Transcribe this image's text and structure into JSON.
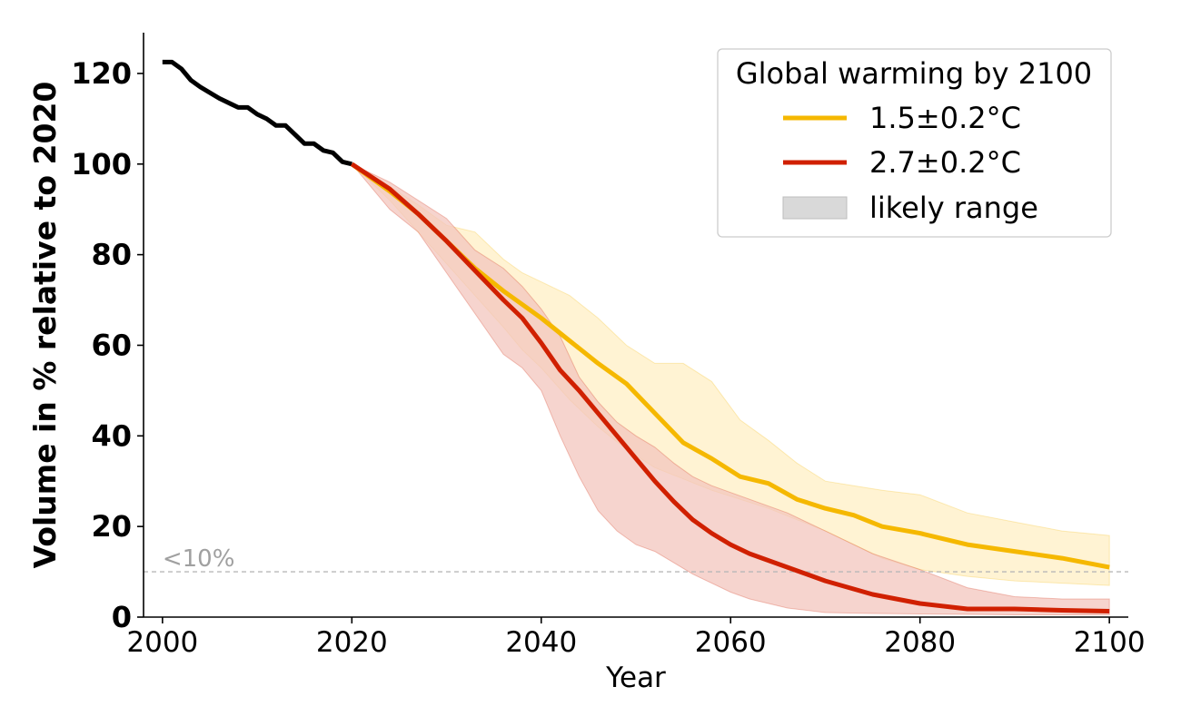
{
  "chart_data": {
    "type": "line",
    "xlabel": "Year",
    "ylabel": "Volume in % relative to 2020",
    "xlim": [
      1998,
      2102
    ],
    "ylim": [
      0,
      129
    ],
    "xticks": [
      2000,
      2020,
      2040,
      2060,
      2080,
      2100
    ],
    "yticks": [
      0,
      20,
      40,
      60,
      80,
      100,
      120
    ],
    "threshold": {
      "value": 10,
      "label": "<10%"
    },
    "legend": {
      "title": "Global warming by 2100",
      "placement": "top-right",
      "entries": [
        {
          "label": "1.5±0.2°C",
          "kind": "line",
          "color": "#F5B800"
        },
        {
          "label": "2.7±0.2°C",
          "kind": "line",
          "color": "#D02000"
        },
        {
          "label": "likely range",
          "kind": "patch",
          "color": "#d9d9d9"
        }
      ]
    },
    "historical": {
      "color": "#000000",
      "x": [
        2000,
        2001,
        2002,
        2003,
        2004,
        2006,
        2008,
        2009,
        2010,
        2011,
        2012,
        2013,
        2014,
        2015,
        2016,
        2017,
        2018,
        2019,
        2020
      ],
      "y": [
        122.5,
        122.5,
        121,
        118.5,
        117,
        114.5,
        112.5,
        112.5,
        111,
        110,
        108.5,
        108.5,
        106.5,
        104.5,
        104.5,
        103,
        102.5,
        100.5,
        100
      ]
    },
    "series": [
      {
        "name": "1.5±0.2°C",
        "color": "#F5B800",
        "band_color": "#FFEFC4",
        "x": [
          2020,
          2024,
          2027,
          2030,
          2033,
          2036,
          2038,
          2040,
          2043,
          2046,
          2049,
          2052,
          2055,
          2058,
          2061,
          2064,
          2067,
          2070,
          2073,
          2076,
          2080,
          2085,
          2090,
          2095,
          2100
        ],
        "y": [
          100,
          94,
          89,
          83,
          77,
          72,
          69,
          66,
          61,
          56,
          51.5,
          45,
          38.5,
          35,
          31,
          29.5,
          26,
          24,
          22.5,
          20,
          18.5,
          16,
          14.5,
          13,
          11
        ],
        "lower": [
          100,
          92,
          85,
          78,
          71,
          64,
          59,
          55,
          48,
          42,
          37,
          33,
          30.5,
          28,
          26,
          24,
          21.5,
          19,
          16,
          13,
          10.5,
          9,
          8,
          7.5,
          7
        ],
        "upper": [
          100,
          95,
          91,
          86.5,
          85,
          79,
          76,
          74,
          71,
          66,
          60,
          56,
          56,
          52,
          43.5,
          39,
          34,
          30,
          29,
          28,
          27,
          23,
          21,
          19,
          18
        ]
      },
      {
        "name": "2.7±0.2°C",
        "color": "#D02000",
        "band_color": "#F3C6BE",
        "x": [
          2020,
          2024,
          2027,
          2030,
          2033,
          2036,
          2038,
          2040,
          2042,
          2044,
          2046,
          2048,
          2050,
          2052,
          2054,
          2056,
          2058,
          2060,
          2062,
          2064,
          2066,
          2070,
          2075,
          2080,
          2085,
          2090,
          2095,
          2100
        ],
        "y": [
          100,
          94.5,
          89,
          83,
          76.5,
          70,
          66,
          60.5,
          54.5,
          50,
          45,
          40,
          35,
          30,
          25.5,
          21.5,
          18.5,
          16,
          14,
          12.5,
          11,
          8,
          5,
          3,
          1.8,
          1.8,
          1.5,
          1.3
        ],
        "lower": [
          100,
          90,
          85,
          76,
          67,
          58,
          55,
          50,
          40,
          31,
          23.5,
          19,
          16,
          14.5,
          12,
          9.5,
          7.5,
          5.5,
          4,
          3,
          2,
          1,
          0.8,
          0.7,
          0.6,
          0.5,
          0.5,
          0.5
        ],
        "upper": [
          100,
          96,
          92,
          88,
          81,
          77,
          73,
          68,
          62,
          53,
          47.5,
          43,
          40,
          37.5,
          34,
          31,
          29,
          27.5,
          26,
          24.5,
          23,
          19,
          14,
          10.5,
          6.5,
          4.5,
          4,
          4
        ]
      }
    ]
  }
}
